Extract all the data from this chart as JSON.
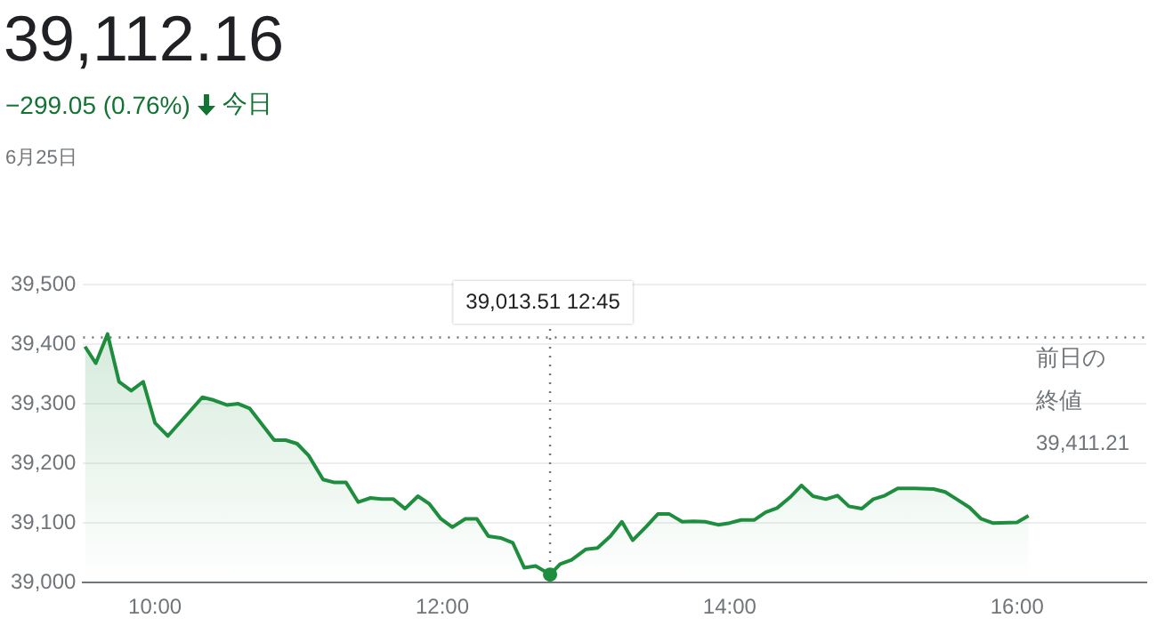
{
  "chart_data": {
    "type": "area",
    "title": "39,112.16",
    "subtitle": "−299.05 (0.76%)",
    "annotations": [
      "今日",
      "6月25日",
      "39,013.51 12:45",
      "39,411.21"
    ],
    "x": [
      9.513,
      9.588,
      9.67,
      9.75,
      9.835,
      9.918,
      10.0,
      10.09,
      10.33,
      10.41,
      10.5,
      10.58,
      10.66,
      10.83,
      10.91,
      10.99,
      11.07,
      11.17,
      11.25,
      11.33,
      11.415,
      11.5,
      11.58,
      11.66,
      11.74,
      11.83,
      11.91,
      11.99,
      12.07,
      12.16,
      12.24,
      12.32,
      12.405,
      12.49,
      12.57,
      12.65,
      12.75,
      12.82,
      12.9,
      13.0,
      13.08,
      13.17,
      13.25,
      13.325,
      13.42,
      13.5,
      13.58,
      13.67,
      13.75,
      13.83,
      13.92,
      14.0,
      14.08,
      14.17,
      14.25,
      14.33,
      14.42,
      14.5,
      14.58,
      14.67,
      14.75,
      14.83,
      14.92,
      15.0,
      15.08,
      15.17,
      15.29,
      15.42,
      15.5,
      15.58,
      15.67,
      15.75,
      15.83,
      16.0,
      16.08
    ],
    "series": [
      {
        "color": "#1e8e3e",
        "values": [
          39396,
          39368,
          39417,
          39337,
          39322,
          39337,
          39268,
          39246,
          39311,
          39306,
          39298,
          39300,
          39292,
          39239,
          39239,
          39233,
          39213,
          39173,
          39168,
          39168,
          39135,
          39142,
          39140,
          39140,
          39124,
          39145,
          39132,
          39107,
          39093,
          39107,
          39107,
          39078,
          39075,
          39067,
          39025,
          39028,
          39013.51,
          39031,
          39038,
          39056,
          39058,
          39078,
          39102,
          39071,
          39094,
          39115,
          39115,
          39102,
          39103,
          39102,
          39097,
          39100,
          39105,
          39105,
          39118,
          39125,
          39143,
          39163,
          39145,
          39140,
          39146,
          39128,
          39124,
          39140,
          39146,
          39158,
          39158,
          39157,
          39152,
          39140,
          39126,
          39107,
          39100,
          39101,
          39112.16
        ]
      }
    ],
    "xlim": [
      9.5,
      16.9
    ],
    "xticks": [
      {
        "value": 10,
        "label": "10:00"
      },
      {
        "value": 12,
        "label": "12:00"
      },
      {
        "value": 14,
        "label": "14:00"
      },
      {
        "value": 16,
        "label": "16:00"
      }
    ],
    "ylim": [
      39000,
      39500
    ],
    "yticks": [
      {
        "value": 39000,
        "label": "39,000"
      },
      {
        "value": 39100,
        "label": "39,100"
      },
      {
        "value": 39200,
        "label": "39,200"
      },
      {
        "value": 39300,
        "label": "39,300"
      },
      {
        "value": 39400,
        "label": "39,400"
      },
      {
        "value": 39500,
        "label": "39,500"
      }
    ],
    "grid": "y",
    "marker": "none",
    "line_style": "solid",
    "ref_lines": [
      {
        "axis": "y",
        "value": 39411.21,
        "label": "前日の終値",
        "color": "#70757a",
        "line_style": "dotted"
      },
      {
        "axis": "x",
        "value": 12.75,
        "color": "#70757a",
        "line_style": "dotted"
      }
    ]
  }
}
